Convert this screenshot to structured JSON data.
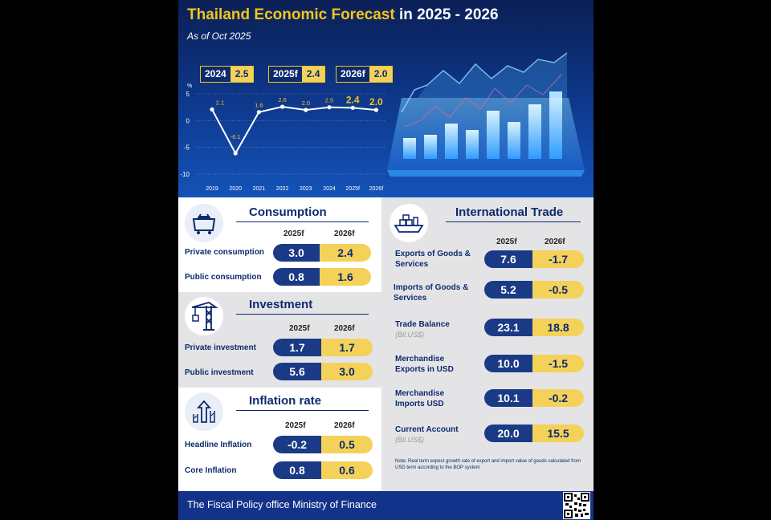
{
  "header": {
    "title_main": "Thailand Economic Forecast",
    "title_years": "in 2025 - 2026",
    "as_of": "As of Oct 2025",
    "badges": [
      {
        "year": "2024",
        "value": "2.5"
      },
      {
        "year": "2025f",
        "value": "2.4"
      },
      {
        "year": "2026f",
        "value": "2.0"
      }
    ]
  },
  "chart_data": {
    "type": "line",
    "title": "",
    "ylabel": "%",
    "ylim": [
      -10,
      5
    ],
    "yticks": [
      5,
      0,
      -5,
      -10
    ],
    "x": [
      "2019",
      "2020",
      "2021",
      "2022",
      "2023",
      "2024",
      "2025f",
      "2026f"
    ],
    "values": [
      2.1,
      -6.1,
      1.6,
      2.6,
      2.0,
      2.5,
      2.4,
      2.0
    ],
    "value_labels": [
      "2.1",
      "-6.1",
      "1.6",
      "2.6",
      "2.0",
      "2.5",
      "2.4",
      "2.0"
    ],
    "grid": false,
    "line_color": "#ffffff",
    "label_color": "#f2c618"
  },
  "consumption": {
    "heading": "Consumption",
    "col1": "2025f",
    "col2": "2026f",
    "rows": [
      {
        "label": "Private consumption",
        "v2025": "3.0",
        "v2026": "2.4"
      },
      {
        "label": "Public consumption",
        "v2025": "0.8",
        "v2026": "1.6"
      }
    ]
  },
  "investment": {
    "heading": "Investment",
    "col1": "2025f",
    "col2": "2026f",
    "rows": [
      {
        "label": "Private investment",
        "v2025": "1.7",
        "v2026": "1.7"
      },
      {
        "label": "Public investment",
        "v2025": "5.6",
        "v2026": "3.0"
      }
    ]
  },
  "inflation": {
    "heading": "Inflation rate",
    "col1": "2025f",
    "col2": "2026f",
    "rows": [
      {
        "label": "Headline Inflation",
        "v2025": "-0.2",
        "v2026": "0.5"
      },
      {
        "label": "Core Inflation",
        "v2025": "0.8",
        "v2026": "0.6"
      }
    ]
  },
  "trade": {
    "heading": "International Trade",
    "col1": "2025f",
    "col2": "2026f",
    "rows": [
      {
        "label": "Exports of Goods & Services",
        "sub": "",
        "v2025": "7.6",
        "v2026": "-1.7"
      },
      {
        "label": "Imports of Goods & Services",
        "sub": "",
        "v2025": "5.2",
        "v2026": "-0.5"
      },
      {
        "label": "Trade Balance",
        "sub": "(Bil.US$)",
        "v2025": "23.1",
        "v2026": "18.8"
      },
      {
        "label": "Merchandise Exports in USD",
        "sub": "",
        "v2025": "10.0",
        "v2026": "-1.5"
      },
      {
        "label": "Merchandise Imports USD",
        "sub": "",
        "v2025": "10.1",
        "v2026": "-0.2"
      },
      {
        "label": "Current Account",
        "sub": "(Bil.US$)",
        "v2025": "20.0",
        "v2026": "15.5"
      }
    ],
    "note": "Note: Real term expect growth rate of export and import value of goods calculated from USD term according to the BOP system"
  },
  "footer": {
    "text": "The Fiscal Policy office Ministry of Finance"
  },
  "icons": {
    "consumption": "shopping-cart-icon",
    "investment": "construction-crane-icon",
    "inflation": "rising-arrows-icon",
    "trade": "cargo-ship-icon",
    "qr": "qr-code-icon"
  },
  "colors": {
    "navy": "#0d2a6e",
    "pill_blue": "#1a3a86",
    "pill_yellow": "#f4d25a",
    "title_yellow": "#f2c618",
    "footer": "#13328a"
  }
}
